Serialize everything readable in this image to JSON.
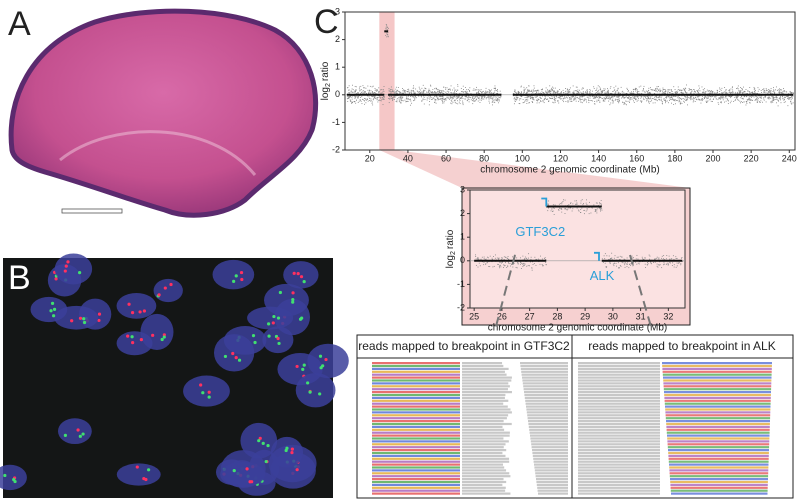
{
  "panel_labels": [
    "A",
    "B",
    "C"
  ],
  "chart_data": [
    {
      "type": "segments",
      "ylabel": [
        "log",
        "2",
        "ratio"
      ],
      "xlabel": "chromosome 2 genomic coordinate (Mb)",
      "xlim": [
        7,
        243
      ],
      "xticks": [
        20,
        40,
        60,
        80,
        100,
        120,
        140,
        160,
        180,
        200,
        220,
        240
      ],
      "ylim": [
        -2,
        3
      ],
      "yticks": [
        -2,
        -1,
        0,
        1,
        2,
        3
      ],
      "color": "#111111",
      "highlight": [
        25,
        33
      ],
      "segments": [
        {
          "x": [
            8,
            27.6
          ],
          "values": [
            0,
            0
          ]
        },
        {
          "x": [
            27.6,
            29.6
          ],
          "values": [
            2.3,
            2.3
          ]
        },
        {
          "x": [
            29.6,
            89
          ],
          "values": [
            0,
            0
          ]
        },
        {
          "x": [
            95,
            242
          ],
          "values": [
            0,
            0
          ]
        }
      ]
    },
    {
      "type": "segments",
      "ylabel": [
        "log",
        "2",
        "ratio"
      ],
      "xlabel": "chromosome 2 genomic coordinate (Mb)",
      "xlim": [
        24.85,
        32.6
      ],
      "xticks": [
        25,
        26,
        27,
        28,
        29,
        30,
        31,
        32
      ],
      "ylim": [
        -2,
        3
      ],
      "yticks": [
        -2,
        -1,
        0,
        1,
        2,
        3
      ],
      "color": "#111111",
      "segments": [
        {
          "x": [
            25,
            27.6
          ],
          "values": [
            0,
            0
          ]
        },
        {
          "x": [
            27.6,
            29.6
          ],
          "values": [
            2.3,
            2.3
          ]
        },
        {
          "x": [
            29.6,
            32.5
          ],
          "values": [
            0,
            0
          ]
        }
      ],
      "genes": [
        {
          "label": "GTF3C2",
          "x": 27.6,
          "y": 2.3
        },
        {
          "label": "ALK",
          "x": 29.5,
          "y": 0
        }
      ]
    }
  ],
  "reads": {
    "left_title": "reads mapped to breakpoint in GTF3C2",
    "right_title": "reads mapped to breakpoint in ALK"
  }
}
